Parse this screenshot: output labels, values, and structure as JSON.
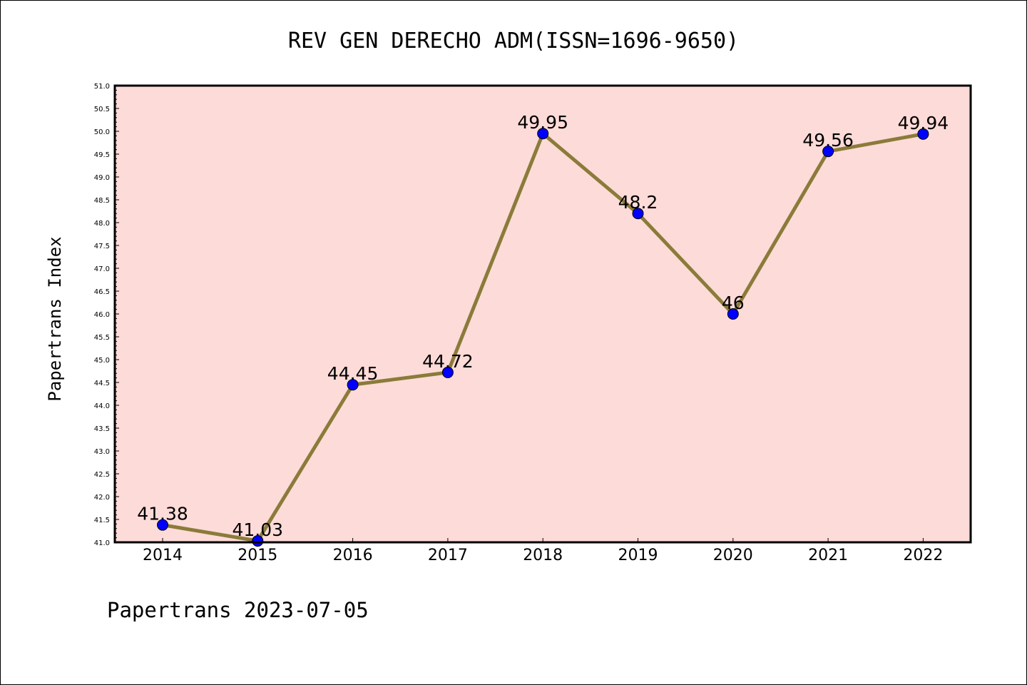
{
  "chart_data": {
    "type": "line",
    "title": "REV GEN DERECHO ADM(ISSN=1696-9650)",
    "xlabel": "",
    "ylabel": "Papertrans Index",
    "categories": [
      "2014",
      "2015",
      "2016",
      "2017",
      "2018",
      "2019",
      "2020",
      "2021",
      "2022"
    ],
    "series": [
      {
        "values": [
          41.38,
          41.03,
          44.45,
          44.72,
          49.95,
          48.2,
          46,
          49.56,
          49.94
        ]
      }
    ],
    "data_labels": [
      "41.38",
      "41.03",
      "44.45",
      "44.72",
      "49.95",
      "48.2",
      "46",
      "49.56",
      "49.94"
    ],
    "ylim": [
      41.0,
      51.0
    ],
    "yticks": [
      "41.0",
      "41.5",
      "42.0",
      "42.5",
      "43.0",
      "43.5",
      "44.0",
      "44.5",
      "45.0",
      "45.5",
      "46.0",
      "46.5",
      "47.0",
      "47.5",
      "48.0",
      "48.5",
      "49.0",
      "49.5",
      "50.0",
      "50.5",
      "51.0"
    ],
    "grid": false,
    "legend": "none",
    "colors": {
      "plot_background": "#fddbd8",
      "line": "#8b7b3a",
      "marker": "#0000ff"
    }
  },
  "footer": "Papertrans 2023-07-05"
}
